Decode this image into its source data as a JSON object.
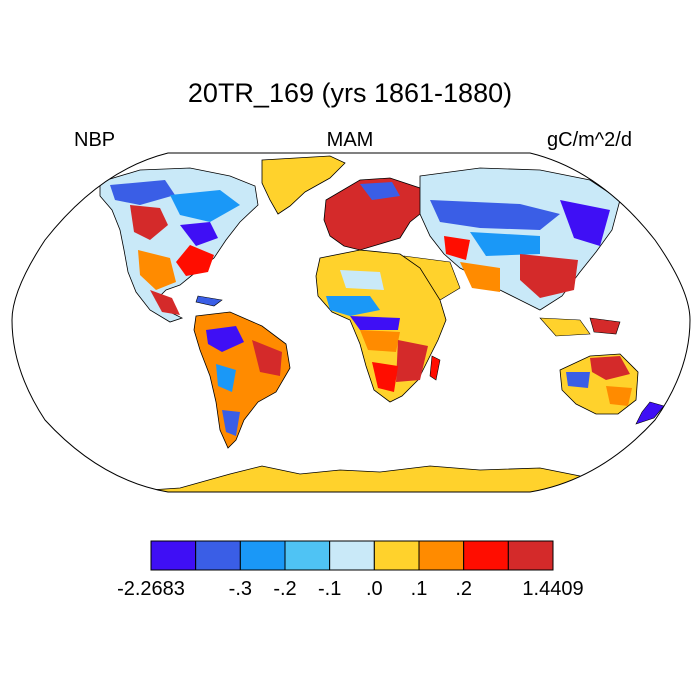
{
  "title": "20TR_169 (yrs 1861-1880)",
  "label_left": "NBP",
  "label_center": "MAM",
  "label_right": "gC/m^2/d",
  "projection": "Robinson",
  "colorbar": {
    "colors": [
      "#3f0ff5",
      "#3a5ee6",
      "#1a98f7",
      "#4fc3f4",
      "#c9e9f8",
      "#ffd22c",
      "#ff8b00",
      "#ff0d00",
      "#d42a2a"
    ],
    "tick_labels": [
      "-2.2683",
      "-.3",
      "-.2",
      "-.1",
      ".0",
      ".1",
      ".2",
      "1.4409"
    ]
  },
  "colors": {
    "ocean": "#ffffff",
    "outline": "#000000",
    "antarctica": "#ffd22c",
    "greenland": "#ffd22c"
  }
}
